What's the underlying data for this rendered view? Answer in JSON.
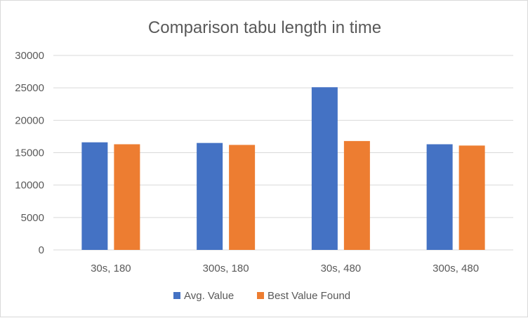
{
  "chart_data": {
    "type": "bar",
    "title": "Comparison tabu length in time",
    "categories": [
      "30s, 180",
      "300s, 180",
      "30s, 480",
      "300s, 480"
    ],
    "series": [
      {
        "name": "Avg. Value",
        "color": "#4472c4",
        "values": [
          16600,
          16500,
          25100,
          16300
        ]
      },
      {
        "name": "Best Value Found",
        "color": "#ed7d31",
        "values": [
          16300,
          16200,
          16800,
          16100
        ]
      }
    ],
    "ylim": [
      0,
      30000
    ],
    "yticks": [
      0,
      5000,
      10000,
      15000,
      20000,
      25000,
      30000
    ],
    "grid": true,
    "legend_position": "bottom"
  }
}
